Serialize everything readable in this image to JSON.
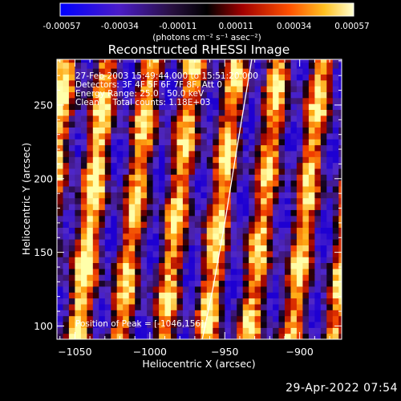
{
  "colorbar": {
    "tick_labels": [
      "-0.00057",
      "-0.00034",
      "-0.00011",
      "0.00011",
      "0.00034",
      "0.00057"
    ],
    "unit_label": "(photons cm⁻² s⁻¹ asec⁻²)"
  },
  "chart_data": {
    "type": "heatmap",
    "title": "Reconstructed RHESSI Image",
    "xlabel": "Heliocentric X (arcsec)",
    "ylabel": "Heliocentric Y (arcsec)",
    "xlim": [
      -1062,
      -872
    ],
    "ylim": [
      91,
      281
    ],
    "x_ticks": [
      -1050,
      -1000,
      -950,
      -900
    ],
    "x_tick_labels": [
      "−1050",
      "−1000",
      "−950",
      "−900"
    ],
    "y_ticks": [
      100,
      150,
      200,
      250
    ],
    "y_tick_labels": [
      "100",
      "150",
      "200",
      "250"
    ],
    "colorbar_range": [
      -0.00057,
      0.00057
    ],
    "ridges_x": [
      -1039,
      -1010,
      -984,
      -955,
      -924,
      -897
    ],
    "troughs_x": [
      -1053,
      -1024,
      -997,
      -969,
      -940,
      -911,
      -884
    ],
    "peak": [
      -1046,
      156
    ],
    "limb_line": [
      [
        -965,
        91
      ],
      [
        -958,
        125
      ],
      [
        -950,
        170
      ],
      [
        -942,
        220
      ],
      [
        -932,
        281
      ]
    ],
    "annotations": [
      "27-Feb-2003 15:49:44.000 to 15:51:20.000",
      "Detectors: 3F 4F 5F 6F 7F 8F, Att 0",
      "Energy Range: 25.0 - 50.0 keV",
      "Clean     Total counts: 1.18E+03"
    ],
    "peak_label": "Position of Peak = [-1046,156]"
  },
  "footer": {
    "date": "29-Apr-2022 07:54"
  }
}
